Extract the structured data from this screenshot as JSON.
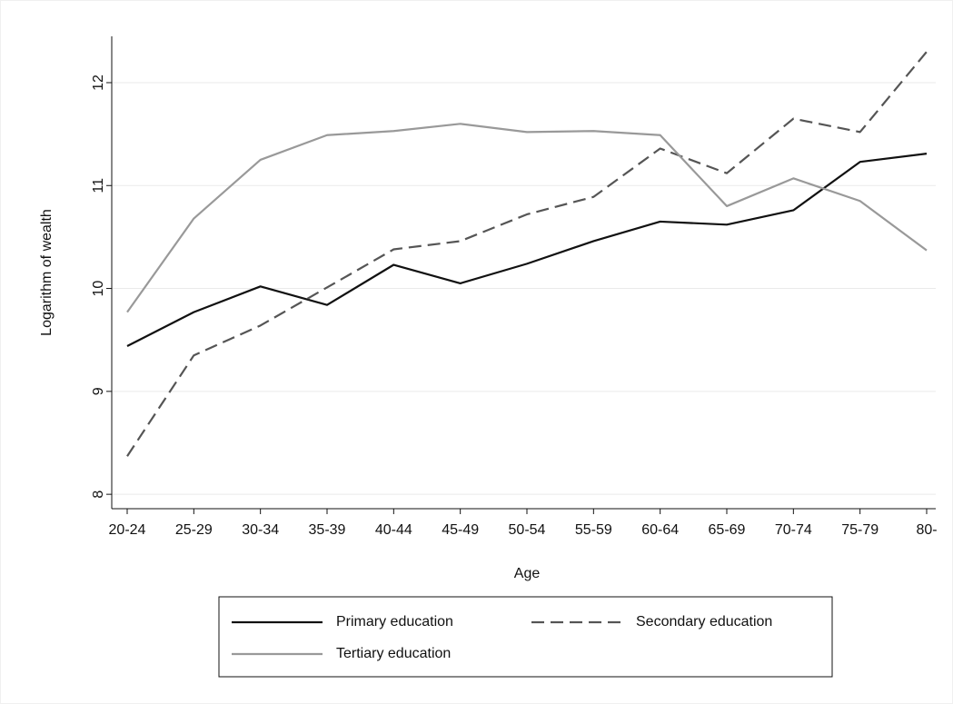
{
  "chart_data": {
    "type": "line",
    "y_label": "Logarithm of wealth",
    "x_label": "Age",
    "categories": [
      "20-24",
      "25-29",
      "30-34",
      "35-39",
      "40-44",
      "45-49",
      "50-54",
      "55-59",
      "60-64",
      "65-69",
      "70-74",
      "75-79",
      "80-"
    ],
    "series": [
      {
        "name": "Primary education",
        "color": "#111111",
        "line_style": "solid",
        "values": [
          9.44,
          9.77,
          10.02,
          9.84,
          10.23,
          10.05,
          10.24,
          10.46,
          10.65,
          10.62,
          10.76,
          11.23,
          11.31
        ]
      },
      {
        "name": "Secondary education",
        "color": "#555555",
        "line_style": "dashed",
        "values": [
          8.37,
          9.35,
          9.64,
          10.01,
          10.38,
          10.46,
          10.72,
          10.89,
          11.36,
          11.12,
          11.65,
          11.52,
          12.3
        ]
      },
      {
        "name": "Tertiary education",
        "color": "#999999",
        "line_style": "solid",
        "values": [
          9.77,
          10.68,
          11.25,
          11.49,
          11.53,
          11.6,
          11.52,
          11.53,
          11.49,
          10.8,
          11.07,
          10.85,
          10.37
        ]
      }
    ],
    "ylim": [
      7.86,
      12.45
    ],
    "yticks": [
      8,
      9,
      10,
      11,
      12
    ],
    "grid": true
  }
}
